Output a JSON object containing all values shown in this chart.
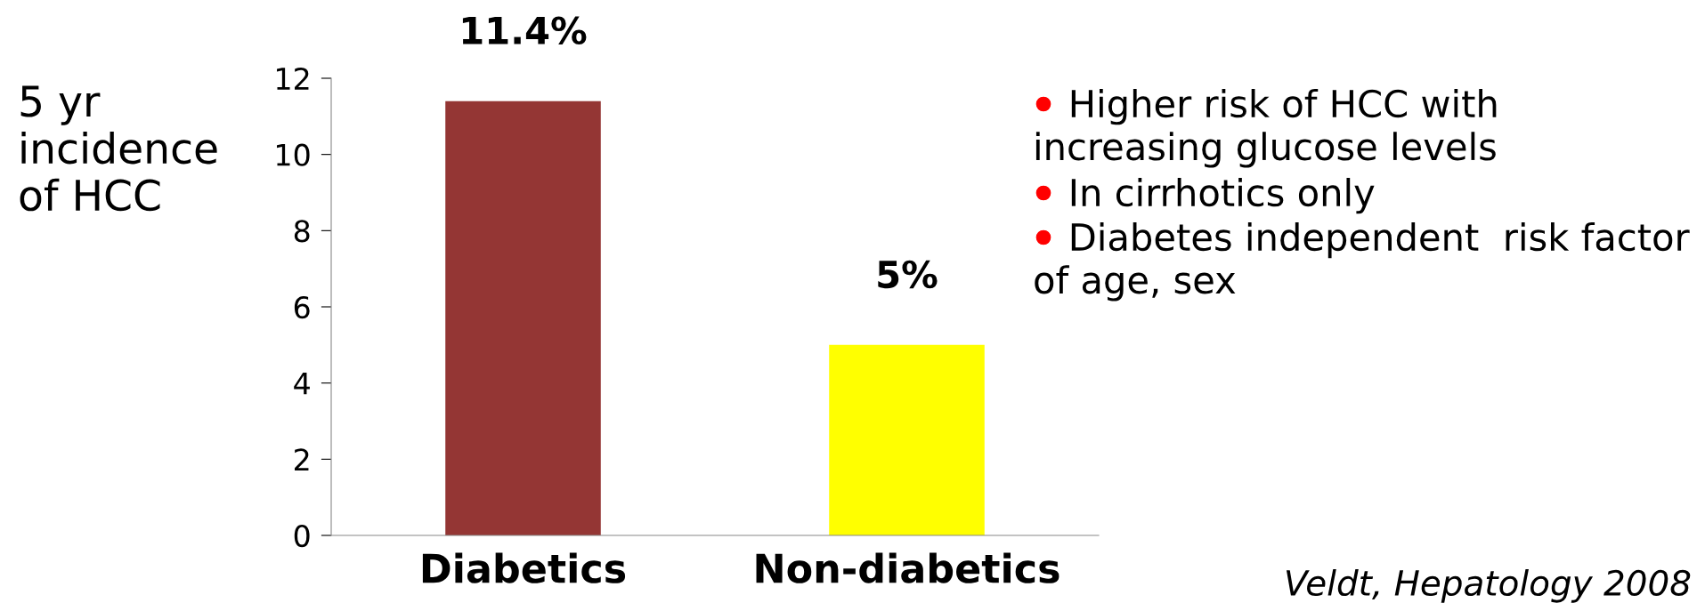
{
  "chart_data": {
    "type": "bar",
    "ylabel": "5 yr\nincidence\nof HCC",
    "categories": [
      "Diabetics",
      "Non-diabetics"
    ],
    "values": [
      11.4,
      5
    ],
    "colors": [
      "#943634",
      "#ffff00"
    ],
    "value_labels": [
      "11.4%",
      "5%"
    ],
    "ylim": [
      0,
      12
    ],
    "yticks": [
      0,
      2,
      4,
      6,
      8,
      10,
      12
    ],
    "grid": false,
    "legend": false,
    "annotations": [
      "Higher risk of HCC with\nincreasing glucose levels",
      "In cirrhotics only",
      "Diabetes independent  risk factor\nof age, sex",
      "Veldt, Hepatology 2008"
    ]
  }
}
